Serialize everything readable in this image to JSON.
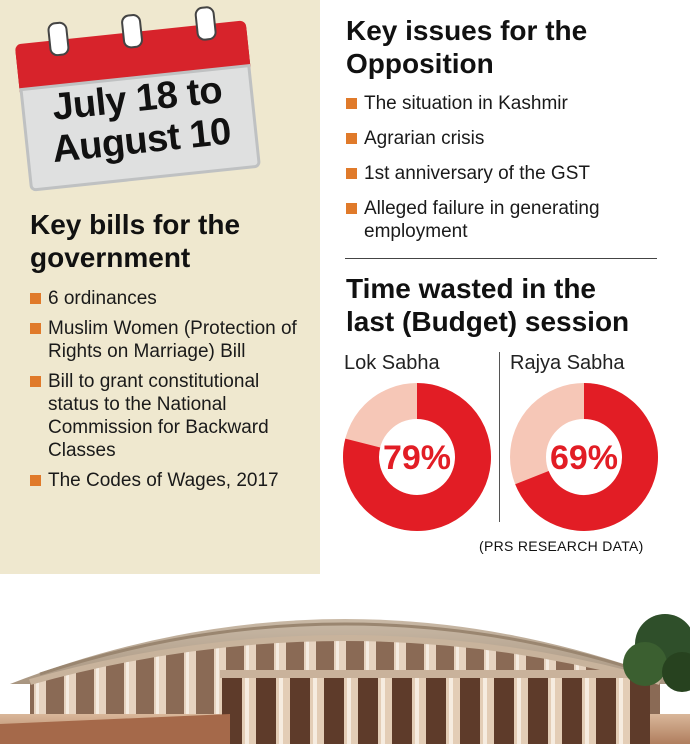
{
  "calendar": {
    "line1": "July 18 to",
    "line2": "August 10"
  },
  "government": {
    "heading_line1": "Key bills for the",
    "heading_line2": "government",
    "bills": [
      "6 ordinances",
      "Muslim Women (Protection of Rights on Marriage) Bill",
      "Bill to grant constitutional status to the National Commission for Backward Classes",
      "The Codes of Wages, 2017"
    ]
  },
  "opposition": {
    "heading_line1": "Key issues for the",
    "heading_line2": "Opposition",
    "issues": [
      "The situation in Kashmir",
      "Agrarian crisis",
      "1st anniversary of the GST",
      "Alleged failure in generating employment"
    ]
  },
  "time_wasted": {
    "heading_line1": "Time wasted in the",
    "heading_line2": "last (Budget) session",
    "source": "(PRS RESEARCH DATA)"
  },
  "colors": {
    "accent_red": "#e21d25",
    "light_red": "#f6c7b7",
    "bullet_orange": "#e07a2a",
    "panel_beige": "#efe8cf"
  },
  "chart_data": {
    "type": "pie",
    "categories": [
      "Lok Sabha",
      "Rajya Sabha"
    ],
    "values": [
      79,
      69
    ],
    "value_labels": [
      "79%",
      "69%"
    ]
  }
}
